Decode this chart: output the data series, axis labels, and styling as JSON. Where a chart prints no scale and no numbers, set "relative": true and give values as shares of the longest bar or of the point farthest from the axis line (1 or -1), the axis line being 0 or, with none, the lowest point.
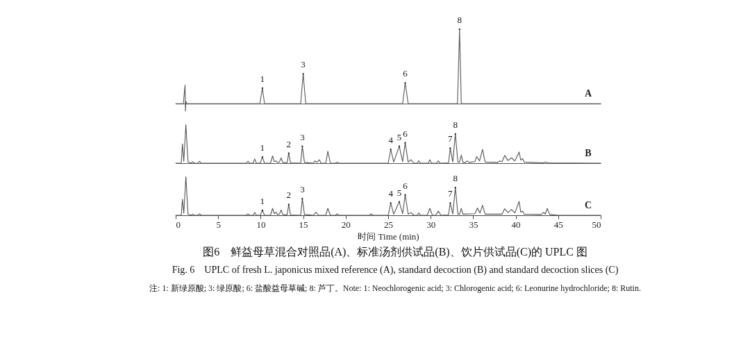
{
  "chart_data": [
    {
      "type": "line",
      "relative": true,
      "tick_labels": false,
      "xlim": [
        0,
        50
      ],
      "xticks": [
        0,
        5,
        10,
        15,
        20,
        25,
        30,
        35,
        40,
        45,
        50
      ],
      "grid": false,
      "marker": "none",
      "line_style": "solid",
      "series": [
        {
          "name": "A",
          "color": "#555555",
          "x": [
            0,
            0.9,
            1.1,
            1.15,
            1.2,
            1.3,
            9.9,
            10.2,
            10.45,
            14.7,
            15.0,
            15.3,
            26.7,
            27.0,
            27.35,
            33.15,
            33.4,
            33.6,
            50
          ],
          "values": [
            0,
            0,
            0.25,
            -0.1,
            0.03,
            0,
            0,
            0.21,
            0,
            0,
            0.4,
            0,
            0,
            0.28,
            0,
            0,
            1.0,
            0,
            0
          ]
        }
      ],
      "annotations": [
        {
          "text": "1",
          "x": 10.2,
          "y": 0.21
        },
        {
          "text": "3",
          "x": 15.0,
          "y": 0.4
        },
        {
          "text": "6",
          "x": 27.0,
          "y": 0.28
        },
        {
          "text": "8",
          "x": 33.4,
          "y": 1.0
        }
      ]
    },
    {
      "type": "line",
      "relative": true,
      "tick_labels": false,
      "xlim": [
        0,
        50
      ],
      "xticks": [
        0,
        5,
        10,
        15,
        20,
        25,
        30,
        35,
        40,
        45,
        50
      ],
      "grid": false,
      "marker": "none",
      "line_style": "solid",
      "series": [
        {
          "name": "B",
          "color": "#555555",
          "x": [
            0,
            0.65,
            0.8,
            0.95,
            1.2,
            1.45,
            1.8,
            2.0,
            2.2,
            2.6,
            2.8,
            3.0,
            8.3,
            8.5,
            8.7,
            9.1,
            9.3,
            9.5,
            9.95,
            10.2,
            10.45,
            11.15,
            11.4,
            11.6,
            11.8,
            12.0,
            12.2,
            12.4,
            12.6,
            13.1,
            13.3,
            13.5,
            14.7,
            14.9,
            15.15,
            16.2,
            16.4,
            16.6,
            16.9,
            17.1,
            17.65,
            17.9,
            18.2,
            18.8,
            19.0,
            19.2,
            25.0,
            25.3,
            25.65,
            26.3,
            26.7,
            27.0,
            27.35,
            27.7,
            28.0,
            28.4,
            28.6,
            28.8,
            29.7,
            29.9,
            30.1,
            30.7,
            30.9,
            31.1,
            32.1,
            32.3,
            32.6,
            32.9,
            33.2,
            33.4,
            33.6,
            33.8,
            34.1,
            34.3,
            34.5,
            35.2,
            35.4,
            35.75,
            36.1,
            36.4,
            37.9,
            38.1,
            38.4,
            38.7,
            39.1,
            39.5,
            39.9,
            40.4,
            40.6,
            40.8,
            41.0,
            43.2,
            43.5,
            43.8,
            50
          ],
          "values": [
            0,
            0,
            0.5,
            0.05,
            1.0,
            0.03,
            0,
            0.04,
            0,
            0,
            0.05,
            0,
            0,
            0.05,
            0,
            0,
            0.11,
            0,
            0,
            0.16,
            0,
            0,
            0.19,
            0.04,
            0.06,
            0.02,
            0.03,
            0.14,
            0.02,
            0.01,
            0.26,
            0.01,
            0,
            0.44,
            0.02,
            0,
            0.06,
            0.02,
            0.09,
            0,
            0,
            0.31,
            0,
            0,
            0.03,
            0,
            0,
            0.36,
            0.03,
            0.44,
            0.04,
            0.53,
            0.03,
            0.09,
            0,
            0,
            0.06,
            0,
            0,
            0.09,
            0,
            0,
            0.06,
            0,
            0.01,
            0.39,
            0.03,
            0.76,
            0.03,
            0.03,
            0.21,
            0.02,
            0.02,
            0.06,
            0.02,
            0.04,
            0.17,
            0.06,
            0.36,
            0.03,
            0.02,
            0.06,
            0.04,
            0.2,
            0.07,
            0.14,
            0.06,
            0.29,
            0.08,
            0.12,
            0.03,
            0.01,
            0.03,
            0.01,
            0
          ]
        }
      ],
      "annotations": [
        {
          "text": "1",
          "x": 10.2,
          "y": 0.16
        },
        {
          "text": "2",
          "x": 13.3,
          "y": 0.26
        },
        {
          "text": "3",
          "x": 14.9,
          "y": 0.44
        },
        {
          "text": "4",
          "x": 25.3,
          "y": 0.36
        },
        {
          "text": "5",
          "x": 26.3,
          "y": 0.44
        },
        {
          "text": "6",
          "x": 27.0,
          "y": 0.53
        },
        {
          "text": "7",
          "x": 32.3,
          "y": 0.39
        },
        {
          "text": "8",
          "x": 32.9,
          "y": 0.76
        }
      ]
    },
    {
      "type": "line",
      "relative": true,
      "tick_labels": "x",
      "xlim": [
        0,
        50
      ],
      "xticks": [
        0,
        5,
        10,
        15,
        20,
        25,
        30,
        35,
        40,
        45,
        50
      ],
      "grid": false,
      "marker": "none",
      "line_style": "solid",
      "xlabel": "时间 Time (min)",
      "series": [
        {
          "name": "C",
          "color": "#555555",
          "x": [
            0,
            0.65,
            0.8,
            0.95,
            1.2,
            1.45,
            1.8,
            2.0,
            2.2,
            2.6,
            2.8,
            3.0,
            8.3,
            8.5,
            8.7,
            9.1,
            9.3,
            9.5,
            9.95,
            10.2,
            10.45,
            11.15,
            11.4,
            11.6,
            11.8,
            12.0,
            12.2,
            12.4,
            12.6,
            13.1,
            13.3,
            13.5,
            14.7,
            14.9,
            15.15,
            16.2,
            16.5,
            16.8,
            17.65,
            17.9,
            18.2,
            18.8,
            19.0,
            19.2,
            22.8,
            23.0,
            23.2,
            25.0,
            25.3,
            25.65,
            26.3,
            26.7,
            27.0,
            27.35,
            27.7,
            28.0,
            28.4,
            28.6,
            28.8,
            29.6,
            29.9,
            30.2,
            30.6,
            30.9,
            31.2,
            32.1,
            32.3,
            32.6,
            32.9,
            33.2,
            33.4,
            33.6,
            33.8,
            35.2,
            35.5,
            35.8,
            36.1,
            36.4,
            38.4,
            38.7,
            39.1,
            39.5,
            39.9,
            40.4,
            40.6,
            40.8,
            41.0,
            43.0,
            43.3,
            43.5,
            43.7,
            44.0,
            45,
            50
          ],
          "values": [
            0,
            0,
            0.42,
            0.05,
            1.0,
            0.03,
            0,
            0.03,
            0,
            0,
            0.04,
            0,
            0,
            0.04,
            0,
            0,
            0.07,
            0,
            0,
            0.13,
            0,
            0,
            0.18,
            0.04,
            0.08,
            0.02,
            0.03,
            0.14,
            0.02,
            0.01,
            0.28,
            0.01,
            0,
            0.43,
            0.02,
            0,
            0.08,
            0,
            0,
            0.18,
            0,
            0,
            0.04,
            0,
            0,
            0.04,
            0,
            0,
            0.32,
            0.03,
            0.35,
            0.04,
            0.53,
            0.03,
            0.07,
            0,
            0,
            0.06,
            0,
            0,
            0.18,
            0,
            0,
            0.11,
            0,
            0.01,
            0.32,
            0.03,
            0.72,
            0.03,
            0.03,
            0.18,
            0.03,
            0.04,
            0.19,
            0.06,
            0.26,
            0.03,
            0.03,
            0.17,
            0.07,
            0.15,
            0.06,
            0.36,
            0.08,
            0.11,
            0.03,
            0.02,
            0.08,
            0.03,
            0.18,
            0.02,
            0,
            0
          ]
        }
      ],
      "annotations": [
        {
          "text": "1",
          "x": 10.2,
          "y": 0.13
        },
        {
          "text": "2",
          "x": 13.3,
          "y": 0.28
        },
        {
          "text": "3",
          "x": 14.9,
          "y": 0.43
        },
        {
          "text": "4",
          "x": 25.3,
          "y": 0.32
        },
        {
          "text": "5",
          "x": 26.3,
          "y": 0.35
        },
        {
          "text": "6",
          "x": 27.0,
          "y": 0.53
        },
        {
          "text": "7",
          "x": 32.3,
          "y": 0.32
        },
        {
          "text": "8",
          "x": 32.9,
          "y": 0.72
        },
        "图6　鲜益母草混合对照品(A)、标准汤剂供试品(B)、饮片供试品(C)的 UPLC 图",
        "Fig. 6　UPLC of fresh L. japonicus mixed reference (A), standard decoction (B) and standard decoction slices (C)",
        "注: 1: 新绿原酸; 3: 绿原酸; 6: 盐酸益母草碱; 8: 芦丁。Note: 1: Neochlorogenic acid; 3: Chlorogenic acid; 6: Leonurine hydrochloride; 8: Rutin."
      ]
    }
  ]
}
